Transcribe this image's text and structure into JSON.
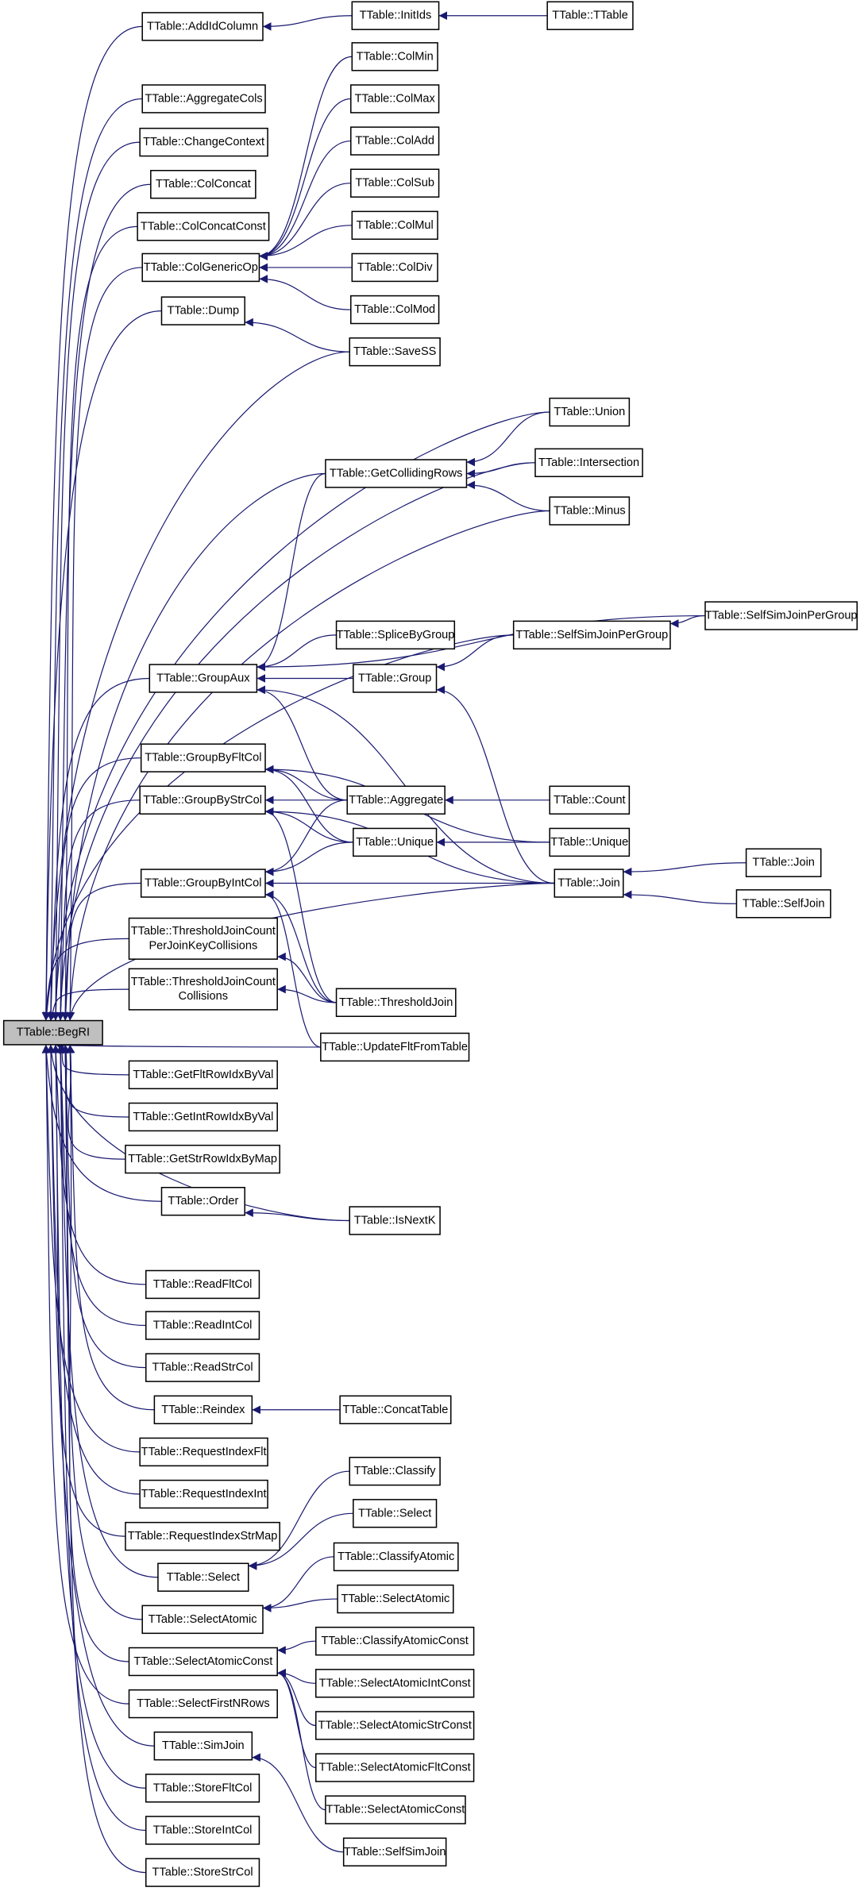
{
  "graph": {
    "type": "caller-graph",
    "colors": {
      "edge": "#191970",
      "root_fill": "#bfbfbf",
      "node_fill": "#ffffff",
      "node_border": "#000000"
    },
    "root": "BegRI",
    "nodes": {
      "BegRI": "TTable::BegRI",
      "AddIdColumn": "TTable::AddIdColumn",
      "AggregateCols": "TTable::AggregateCols",
      "ChangeContext": "TTable::ChangeContext",
      "ColConcat": "TTable::ColConcat",
      "ColConcatConst": "TTable::ColConcatConst",
      "ColGenericOp": "TTable::ColGenericOp",
      "Dump": "TTable::Dump",
      "GetCollidingRows": "TTable::GetCollidingRows",
      "GroupAux": "TTable::GroupAux",
      "GroupByFltCol": "TTable::GroupByFltCol",
      "GroupByStrCol": "TTable::GroupByStrCol",
      "GroupByIntCol": "TTable::GroupByIntCol",
      "TJCPerKey": [
        "TTable::ThresholdJoinCount",
        "PerJoinKeyCollisions"
      ],
      "TJCCollisions": [
        "TTable::ThresholdJoinCount",
        "Collisions"
      ],
      "GetFltRowIdxByVal": "TTable::GetFltRowIdxByVal",
      "GetIntRowIdxByVal": "TTable::GetIntRowIdxByVal",
      "GetStrRowIdxByMap": "TTable::GetStrRowIdxByMap",
      "Order": "TTable::Order",
      "ReadFltCol": "TTable::ReadFltCol",
      "ReadIntCol": "TTable::ReadIntCol",
      "ReadStrCol": "TTable::ReadStrCol",
      "Reindex": "TTable::Reindex",
      "RequestIndexFlt": "TTable::RequestIndexFlt",
      "RequestIndexInt": "TTable::RequestIndexInt",
      "RequestIndexStrMap": "TTable::RequestIndexStrMap",
      "Select": "TTable::Select",
      "SelectAtomic": "TTable::SelectAtomic",
      "SelectAtomicConst": "TTable::SelectAtomicConst",
      "SelectFirstNRows": "TTable::SelectFirstNRows",
      "SimJoin": "TTable::SimJoin",
      "StoreFltCol": "TTable::StoreFltCol",
      "StoreIntCol": "TTable::StoreIntCol",
      "StoreStrCol": "TTable::StoreStrCol",
      "InitIds": "TTable::InitIds",
      "ColMin": "TTable::ColMin",
      "ColMax": "TTable::ColMax",
      "ColAdd": "TTable::ColAdd",
      "ColSub": "TTable::ColSub",
      "ColMul": "TTable::ColMul",
      "ColDiv": "TTable::ColDiv",
      "ColMod": "TTable::ColMod",
      "SaveSS": "TTable::SaveSS",
      "SpliceByGroup": "TTable::SpliceByGroup",
      "Group": "TTable::Group",
      "Aggregate": "TTable::Aggregate",
      "Unique3": "TTable::Unique",
      "ThresholdJoin": "TTable::ThresholdJoin",
      "UpdateFltFromTable": "TTable::UpdateFltFromTable",
      "IsNextK": "TTable::IsNextK",
      "ConcatTable": "TTable::ConcatTable",
      "Classify": "TTable::Classify",
      "Select3": "TTable::Select",
      "ClassifyAtomic": "TTable::ClassifyAtomic",
      "SelectAtomic3": "TTable::SelectAtomic",
      "ClassifyAtomicConst": "TTable::ClassifyAtomicConst",
      "SelectAtomicIntConst": "TTable::SelectAtomicIntConst",
      "SelectAtomicStrConst": "TTable::SelectAtomicStrConst",
      "SelectAtomicFltConst": "TTable::SelectAtomicFltConst",
      "SelectAtomicConst3": "TTable::SelectAtomicConst",
      "SelfSimJoin": "TTable::SelfSimJoin",
      "TTable": "TTable::TTable",
      "Union": "TTable::Union",
      "Intersection": "TTable::Intersection",
      "Minus": "TTable::Minus",
      "SSJPG4": "TTable::SelfSimJoinPerGroup",
      "Count": "TTable::Count",
      "Unique4": "TTable::Unique",
      "Join4": "TTable::Join",
      "SSJPG5": "TTable::SelfSimJoinPerGroup",
      "Join5": "TTable::Join",
      "SelfJoin": "TTable::SelfJoin"
    },
    "edges": [
      [
        "AddIdColumn",
        "BegRI"
      ],
      [
        "AggregateCols",
        "BegRI"
      ],
      [
        "ChangeContext",
        "BegRI"
      ],
      [
        "ColConcat",
        "BegRI"
      ],
      [
        "ColConcatConst",
        "BegRI"
      ],
      [
        "ColGenericOp",
        "BegRI"
      ],
      [
        "Dump",
        "BegRI"
      ],
      [
        "SaveSS",
        "BegRI"
      ],
      [
        "Union",
        "BegRI"
      ],
      [
        "Intersection",
        "BegRI"
      ],
      [
        "GetCollidingRows",
        "BegRI"
      ],
      [
        "Minus",
        "BegRI"
      ],
      [
        "SSJPG4",
        "BegRI"
      ],
      [
        "GroupAux",
        "BegRI"
      ],
      [
        "GroupByFltCol",
        "BegRI"
      ],
      [
        "GroupByStrCol",
        "BegRI"
      ],
      [
        "GroupByIntCol",
        "BegRI"
      ],
      [
        "Join4",
        "BegRI"
      ],
      [
        "TJCPerKey",
        "BegRI"
      ],
      [
        "TJCCollisions",
        "BegRI"
      ],
      [
        "UpdateFltFromTable",
        "BegRI"
      ],
      [
        "GetFltRowIdxByVal",
        "BegRI"
      ],
      [
        "GetIntRowIdxByVal",
        "BegRI"
      ],
      [
        "GetStrRowIdxByMap",
        "BegRI"
      ],
      [
        "Order",
        "BegRI"
      ],
      [
        "IsNextK",
        "BegRI"
      ],
      [
        "ReadFltCol",
        "BegRI"
      ],
      [
        "ReadIntCol",
        "BegRI"
      ],
      [
        "ReadStrCol",
        "BegRI"
      ],
      [
        "Reindex",
        "BegRI"
      ],
      [
        "RequestIndexFlt",
        "BegRI"
      ],
      [
        "RequestIndexInt",
        "BegRI"
      ],
      [
        "RequestIndexStrMap",
        "BegRI"
      ],
      [
        "Select",
        "BegRI"
      ],
      [
        "SelectAtomic",
        "BegRI"
      ],
      [
        "SelectAtomicConst",
        "BegRI"
      ],
      [
        "SelectFirstNRows",
        "BegRI"
      ],
      [
        "SimJoin",
        "BegRI"
      ],
      [
        "StoreFltCol",
        "BegRI"
      ],
      [
        "StoreIntCol",
        "BegRI"
      ],
      [
        "StoreStrCol",
        "BegRI"
      ],
      [
        "InitIds",
        "AddIdColumn"
      ],
      [
        "TTable",
        "InitIds"
      ],
      [
        "ColMin",
        "ColGenericOp"
      ],
      [
        "ColMax",
        "ColGenericOp"
      ],
      [
        "ColAdd",
        "ColGenericOp"
      ],
      [
        "ColSub",
        "ColGenericOp"
      ],
      [
        "ColMul",
        "ColGenericOp"
      ],
      [
        "ColDiv",
        "ColGenericOp"
      ],
      [
        "ColMod",
        "ColGenericOp"
      ],
      [
        "SaveSS",
        "Dump"
      ],
      [
        "Union",
        "GetCollidingRows"
      ],
      [
        "Intersection",
        "GetCollidingRows"
      ],
      [
        "Minus",
        "GetCollidingRows"
      ],
      [
        "GetCollidingRows",
        "GroupAux"
      ],
      [
        "SSJPG5",
        "GroupAux"
      ],
      [
        "SpliceByGroup",
        "GroupAux"
      ],
      [
        "Group",
        "GroupAux"
      ],
      [
        "Aggregate",
        "GroupAux"
      ],
      [
        "Join4",
        "GroupAux"
      ],
      [
        "SSJPG5",
        "SSJPG4"
      ],
      [
        "SSJPG4",
        "Group"
      ],
      [
        "Join4",
        "Group"
      ],
      [
        "Aggregate",
        "GroupByFltCol"
      ],
      [
        "Aggregate",
        "GroupByStrCol"
      ],
      [
        "Aggregate",
        "GroupByIntCol"
      ],
      [
        "Unique3",
        "GroupByFltCol"
      ],
      [
        "Unique3",
        "GroupByStrCol"
      ],
      [
        "Unique3",
        "GroupByIntCol"
      ],
      [
        "Unique4",
        "GroupByFltCol"
      ],
      [
        "Unique4",
        "Unique3"
      ],
      [
        "Count",
        "Aggregate"
      ],
      [
        "Join4",
        "GroupByStrCol"
      ],
      [
        "Join4",
        "GroupByIntCol"
      ],
      [
        "Join5",
        "Join4"
      ],
      [
        "SelfJoin",
        "Join4"
      ],
      [
        "ThresholdJoin",
        "GroupByStrCol"
      ],
      [
        "ThresholdJoin",
        "GroupByIntCol"
      ],
      [
        "UpdateFltFromTable",
        "GroupByIntCol"
      ],
      [
        "ThresholdJoin",
        "TJCPerKey"
      ],
      [
        "ThresholdJoin",
        "TJCCollisions"
      ],
      [
        "IsNextK",
        "Order"
      ],
      [
        "ConcatTable",
        "Reindex"
      ],
      [
        "Classify",
        "Select"
      ],
      [
        "Select3",
        "Select"
      ],
      [
        "ClassifyAtomic",
        "SelectAtomic"
      ],
      [
        "SelectAtomic3",
        "SelectAtomic"
      ],
      [
        "ClassifyAtomicConst",
        "SelectAtomicConst"
      ],
      [
        "SelectAtomicIntConst",
        "SelectAtomicConst"
      ],
      [
        "SelectAtomicStrConst",
        "SelectAtomicConst"
      ],
      [
        "SelectAtomicFltConst",
        "SelectAtomicConst"
      ],
      [
        "SelectAtomicConst3",
        "SelectAtomicConst"
      ],
      [
        "SelfSimJoin",
        "SimJoin"
      ]
    ]
  }
}
